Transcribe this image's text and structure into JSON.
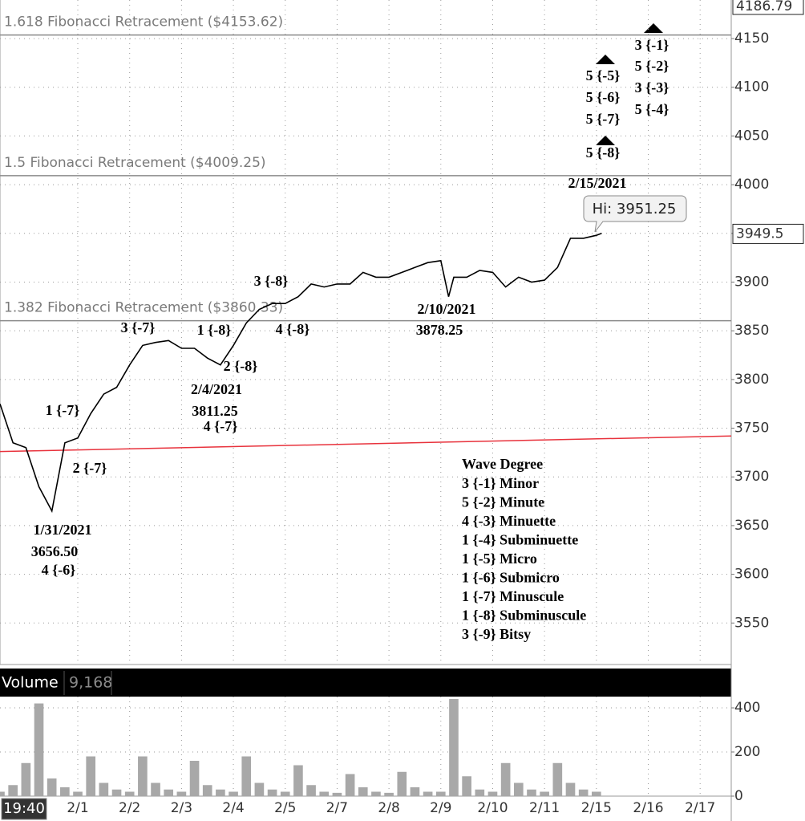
{
  "chart_data": [
    {
      "type": "line",
      "color": "#000000",
      "x": [
        -0.5,
        -0.25,
        0,
        0.25,
        0.5,
        0.75,
        1,
        1.25,
        1.5,
        1.75,
        2,
        2.25,
        2.5,
        2.75,
        3,
        3.25,
        3.5,
        3.75,
        4,
        4.25,
        4.5,
        4.75,
        5,
        5.25,
        5.5,
        5.75,
        6,
        6.25,
        6.5,
        6.75,
        7,
        7.25,
        7.5,
        7.75,
        8,
        8.15,
        8.25,
        8.5,
        8.75,
        9,
        9.25,
        9.5,
        9.75,
        10,
        10.25,
        10.5,
        10.75,
        11,
        11.1
      ],
      "values": [
        3775,
        3735,
        3730,
        3690,
        3665,
        3735,
        3740,
        3765,
        3785,
        3792,
        3815,
        3835,
        3838,
        3840,
        3832,
        3832,
        3822,
        3815,
        3835,
        3858,
        3872,
        3878,
        3878,
        3885,
        3898,
        3895,
        3898,
        3898,
        3910,
        3905,
        3905,
        3910,
        3915,
        3920,
        3922,
        3885,
        3905,
        3905,
        3912,
        3910,
        3895,
        3905,
        3900,
        3902,
        3915,
        3945,
        3945,
        3948,
        3950
      ],
      "xlim": [
        -0.5,
        13.6
      ],
      "xticks": [
        {
          "value": 1,
          "label": "2/1"
        },
        {
          "value": 2,
          "label": "2/2"
        },
        {
          "value": 3,
          "label": "2/3"
        },
        {
          "value": 4,
          "label": "2/4"
        },
        {
          "value": 5,
          "label": "2/5"
        },
        {
          "value": 6,
          "label": "2/7"
        },
        {
          "value": 7,
          "label": "2/8"
        },
        {
          "value": 8,
          "label": "2/9"
        },
        {
          "value": 9,
          "label": "2/10"
        },
        {
          "value": 10,
          "label": "2/11"
        },
        {
          "value": 11,
          "label": "2/15"
        },
        {
          "value": 12,
          "label": "2/16"
        },
        {
          "value": 13,
          "label": "2/17"
        }
      ],
      "ylim": [
        3507.4,
        4189.6
      ],
      "yticks": [
        3550,
        3600,
        3650,
        3700,
        3750,
        3800,
        3850,
        3900,
        3950,
        4000,
        4050,
        4100,
        4150
      ],
      "grid": true,
      "cursor_time": "19:40",
      "top_value": 4186.79,
      "last_price": 3949.5,
      "high_label": "Hi: 3951.25",
      "levels": [
        {
          "label": "1.618 Fibonacci Retracement ($4153.62)",
          "value": 4153.62,
          "color": "#8a8a8a"
        },
        {
          "label": "1.5 Fibonacci  Retracement  ($4009.25)",
          "value": 4009.25,
          "color": "#8a8a8a"
        },
        {
          "label": "1.382 Fibonacci Retracement ($3860.33)",
          "value": 3860.33,
          "color": "#8a8a8a"
        }
      ],
      "trendline": {
        "color": "#e8323c",
        "x": [
          -0.5,
          13.6
        ],
        "values": [
          3726,
          3742
        ]
      },
      "annotations": [
        "2/15/2021",
        "2/10/2021",
        "3878.25",
        "3 {-8}",
        "4 {-8}",
        "3 {-7}",
        "1 {-8}",
        "2 {-8}",
        "2/4/2021",
        "3811.25",
        "4 {-7}",
        "1 {-7}",
        "2 {-7}",
        "1/31/2021",
        "3656.50",
        "4 {-6}",
        "5 {-5}",
        "5 {-6}",
        "5 {-7}",
        "5 {-8}",
        "3 {-1}",
        "5 {-2}",
        "3 {-3}",
        "5 {-4}"
      ],
      "wave_degree": {
        "title": "Wave Degree",
        "items": [
          "3 {-1} Minor",
          "5 {-2} Minute",
          "4 {-3} Minuette",
          "1 {-4} Subminuette",
          "1 {-5} Micro",
          "1 {-6} Submicro",
          "1 {-7} Minuscule",
          "1 {-8} Subminuscule",
          "3 {-9} Bitsy"
        ]
      }
    },
    {
      "type": "bar",
      "title": "Volume",
      "color": "#a8a8a8",
      "last": {
        "value": 9168,
        "label": "9,168"
      },
      "x": [
        -0.5,
        -0.25,
        0,
        0.25,
        0.5,
        0.75,
        1,
        1.25,
        1.5,
        1.75,
        2,
        2.25,
        2.5,
        2.75,
        3,
        3.25,
        3.5,
        3.75,
        4,
        4.25,
        4.5,
        4.75,
        5,
        5.25,
        5.5,
        5.75,
        6,
        6.25,
        6.5,
        6.75,
        7,
        7.25,
        7.5,
        7.75,
        8,
        8.25,
        8.5,
        8.75,
        9,
        9.25,
        9.5,
        9.75,
        10,
        10.25,
        10.5,
        10.75,
        11
      ],
      "values": [
        20,
        50,
        150,
        420,
        80,
        40,
        20,
        180,
        60,
        30,
        20,
        180,
        60,
        30,
        20,
        160,
        50,
        30,
        20,
        180,
        60,
        30,
        20,
        140,
        50,
        20,
        15,
        100,
        40,
        20,
        15,
        110,
        40,
        20,
        20,
        440,
        90,
        30,
        20,
        150,
        60,
        30,
        20,
        150,
        60,
        30,
        20
      ],
      "ylim": [
        0,
        451
      ],
      "yticks": [
        0,
        200,
        400
      ]
    }
  ]
}
